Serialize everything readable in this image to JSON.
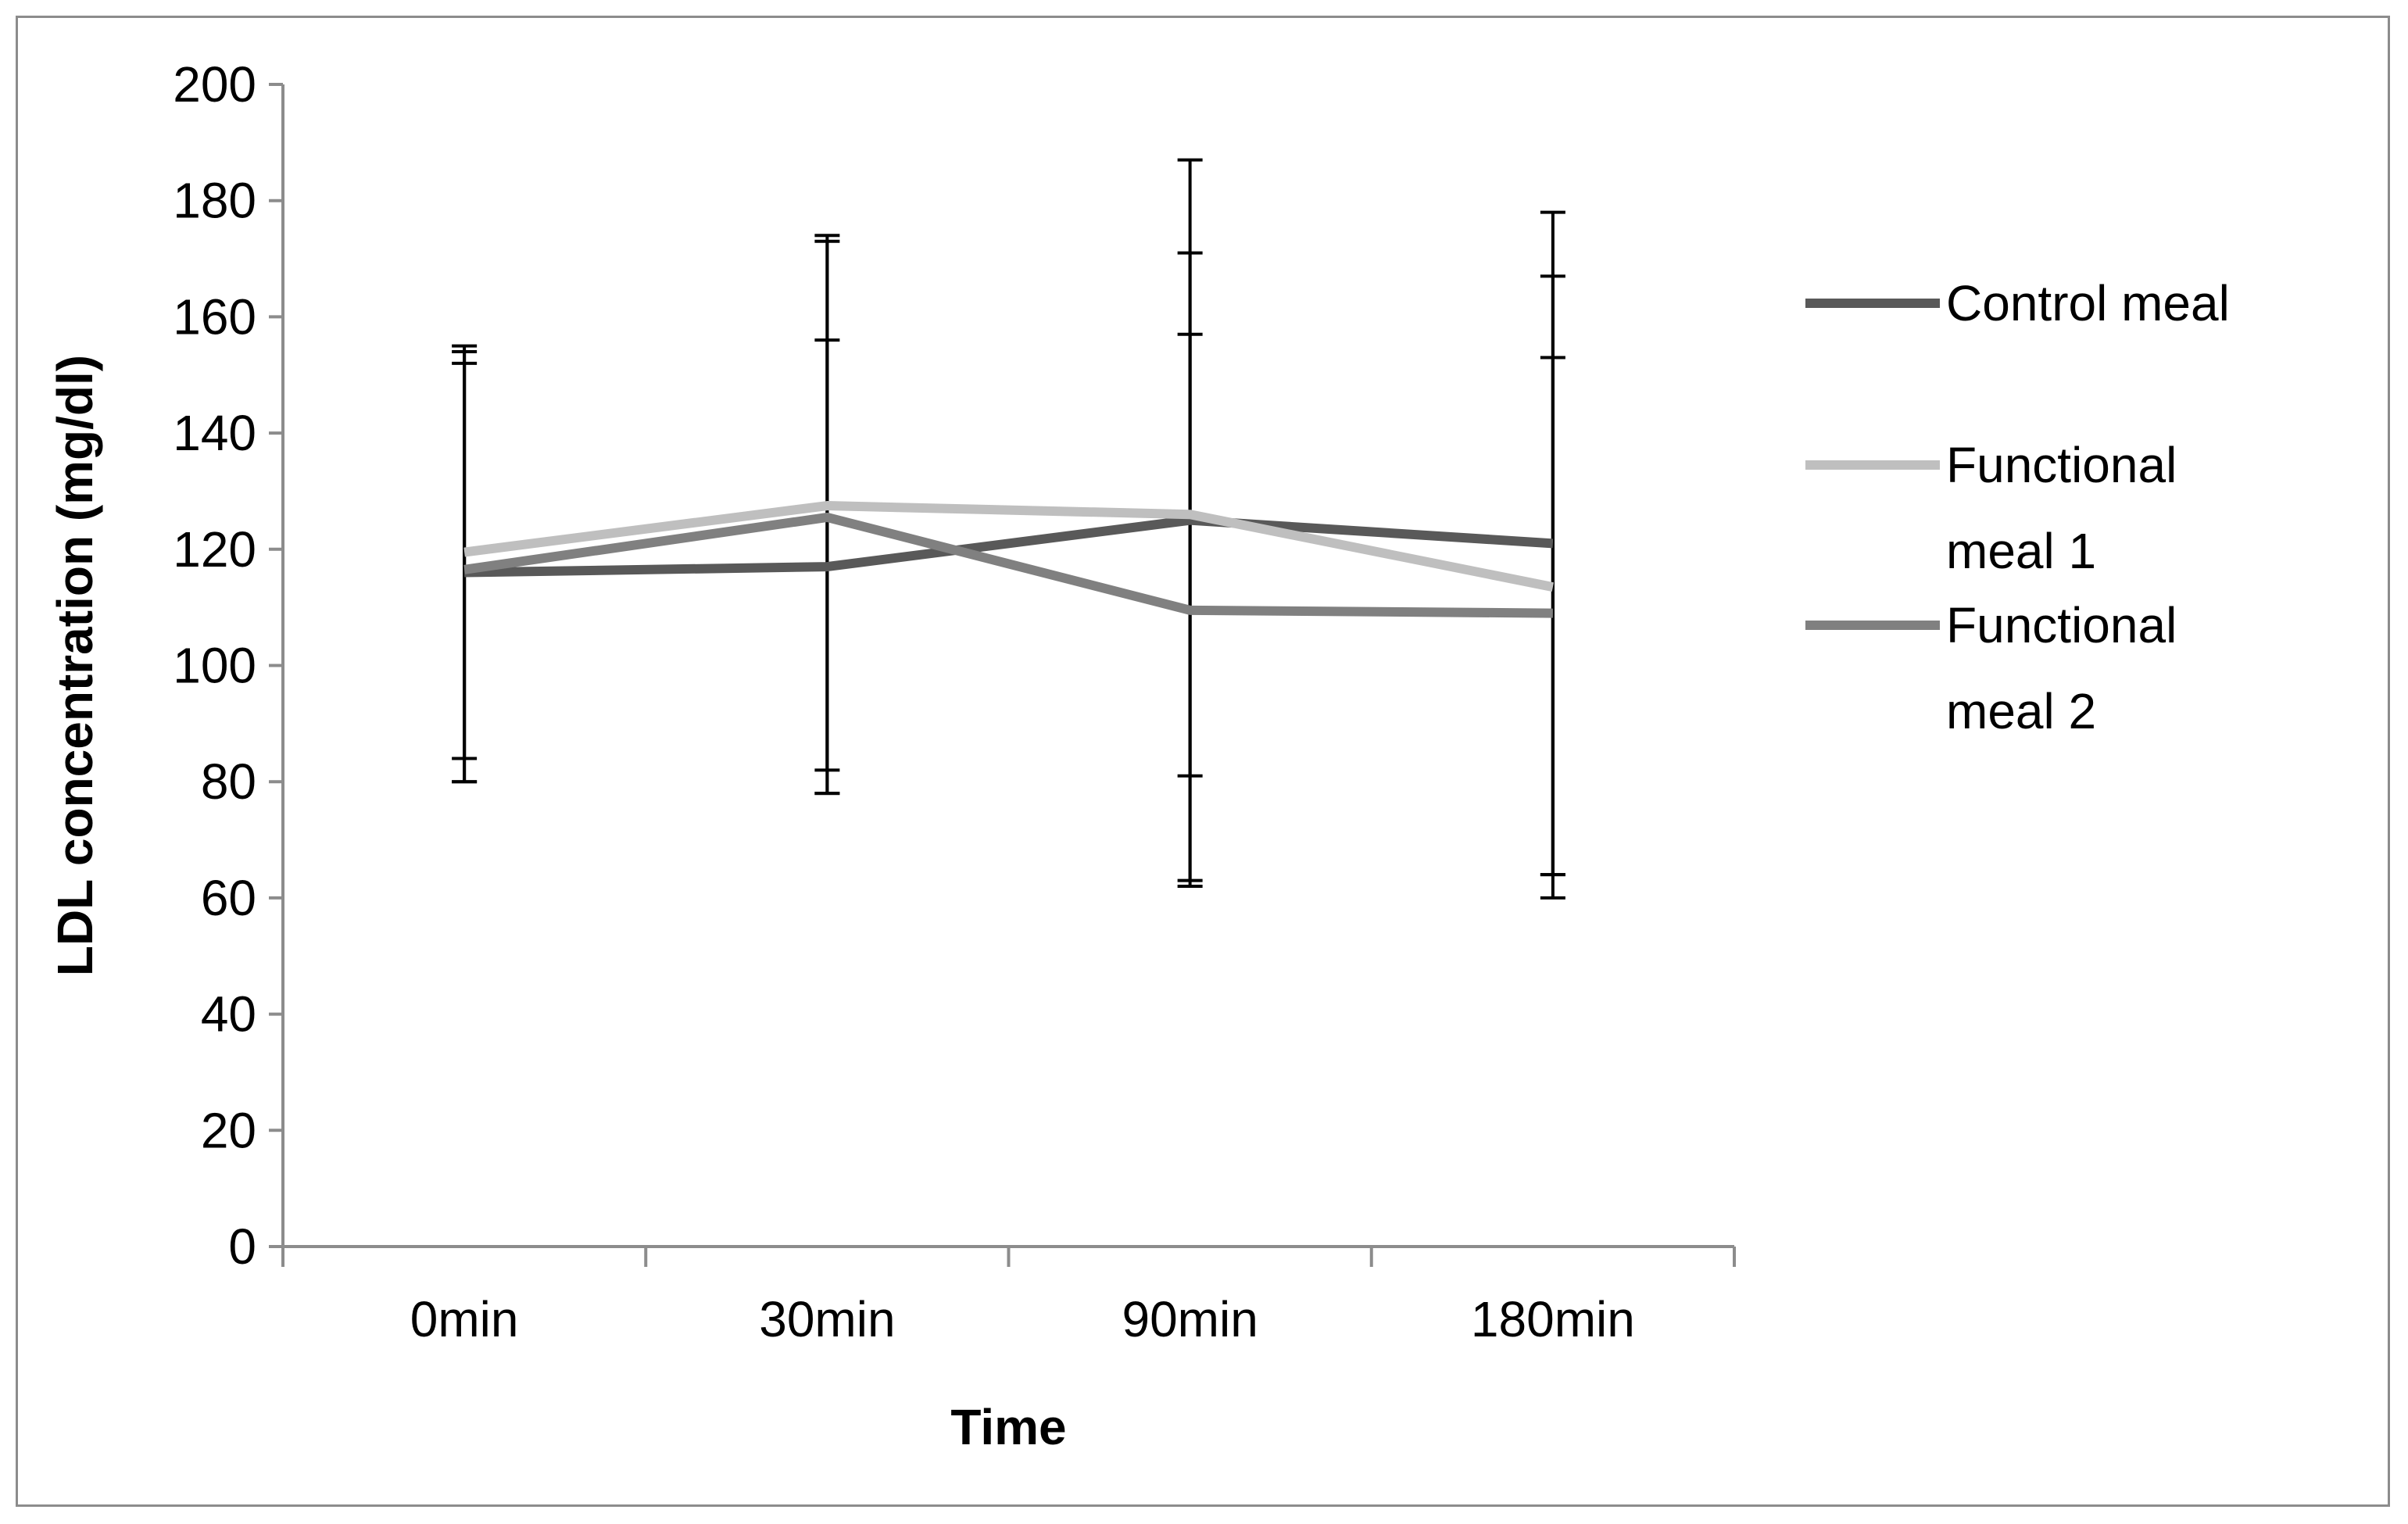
{
  "chart_data": {
    "type": "line",
    "title": "",
    "xlabel": "Time",
    "ylabel": "LDL concentration (mg/dl)",
    "ylim": [
      0,
      200
    ],
    "ytick_step": 20,
    "yticks": [
      "0",
      "20",
      "40",
      "60",
      "80",
      "100",
      "120",
      "140",
      "160",
      "180",
      "200"
    ],
    "categories": [
      "0min",
      "30min",
      "90min",
      "180min"
    ],
    "grid": false,
    "legend_position": "right",
    "series": [
      {
        "name": "Control meal",
        "legend_lines": [
          "Control meal"
        ],
        "color": "#595959",
        "values": [
          116,
          117,
          125,
          121
        ],
        "error_low": [
          80,
          78,
          63,
          64
        ],
        "error_high": [
          152,
          156,
          187,
          178
        ]
      },
      {
        "name": "Functional meal 1",
        "legend_lines": [
          "Functional",
          "meal 1"
        ],
        "color": "#bfbfbf",
        "values": [
          119.5,
          127.5,
          126,
          113.5
        ],
        "error_low": [
          84,
          82,
          81,
          60
        ],
        "error_high": [
          155,
          173,
          171,
          167
        ]
      },
      {
        "name": "Functional meal 2",
        "legend_lines": [
          "Functional",
          "meal 2"
        ],
        "color": "#808080",
        "values": [
          116.5,
          125.5,
          109.5,
          109
        ],
        "error_low": [
          80,
          78,
          62,
          64
        ],
        "error_high": [
          154,
          174,
          157,
          153
        ]
      }
    ]
  }
}
